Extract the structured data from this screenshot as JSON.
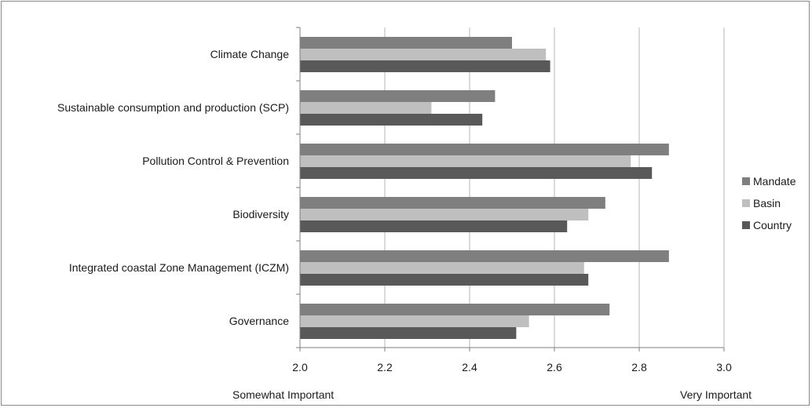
{
  "chart_data": {
    "type": "bar",
    "orientation": "horizontal",
    "categories": [
      "Climate Change",
      "Sustainable consumption and production (SCP)",
      "Pollution Control & Prevention",
      "Biodiversity",
      "Integrated coastal Zone Management (ICZM)",
      "Governance"
    ],
    "series": [
      {
        "name": "Mandate",
        "color": "#7f7f7f",
        "values": [
          2.5,
          2.46,
          2.87,
          2.72,
          2.87,
          2.73
        ]
      },
      {
        "name": "Basin",
        "color": "#bfbfbf",
        "values": [
          2.58,
          2.31,
          2.78,
          2.68,
          2.67,
          2.54
        ]
      },
      {
        "name": "Country",
        "color": "#595959",
        "values": [
          2.59,
          2.43,
          2.83,
          2.63,
          2.68,
          2.51
        ]
      }
    ],
    "xlim": [
      2.0,
      3.0
    ],
    "x_ticks": [
      "2.0",
      "2.2",
      "2.4",
      "2.6",
      "2.8",
      "3.0"
    ],
    "x_annotations": {
      "left": "Somewhat Important",
      "right": "Very Important"
    },
    "grid": "vertical",
    "legend_position": "right"
  }
}
